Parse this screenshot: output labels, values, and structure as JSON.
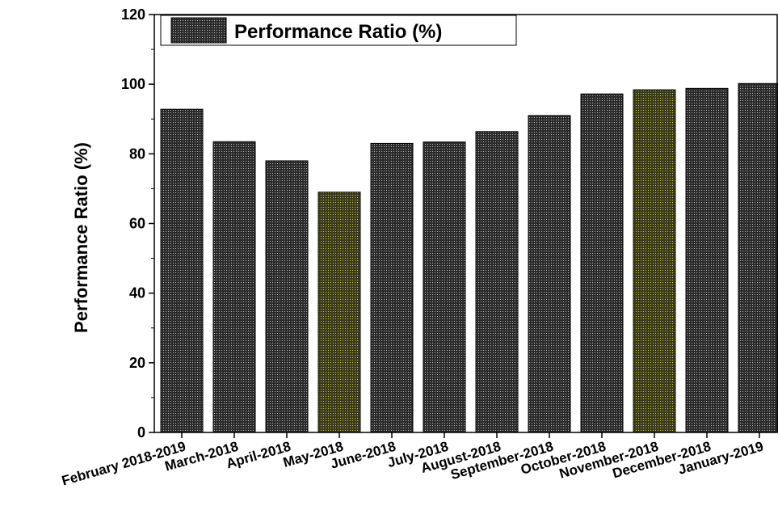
{
  "chart_data": {
    "type": "bar",
    "ylabel": "Performance Ratio (%)",
    "xlabel": "",
    "ylim": [
      0,
      120
    ],
    "yticks": [
      0,
      20,
      40,
      60,
      80,
      100,
      120
    ],
    "grid": false,
    "legend_position": "top-left",
    "categories": [
      "February 2018-2019",
      "March-2018",
      "April-2018",
      "May-2018",
      "June-2018",
      "July-2018",
      "August-2018",
      "September-2018",
      "October-2018",
      "November-2018",
      "December-2018",
      "January-2019"
    ],
    "series": [
      {
        "name": "Performance Ratio (%)",
        "values": [
          92.8,
          83.5,
          78.0,
          69.0,
          83.0,
          83.4,
          86.4,
          91.0,
          97.2,
          98.4,
          98.8,
          100.2
        ]
      }
    ],
    "bar_colors": [
      "#2a2a2a",
      "#2a2a2a",
      "#2a2a2a",
      "#3a3a1a",
      "#2a2a2a",
      "#2a2a2a",
      "#2a2a2a",
      "#2a2a2a",
      "#2a2a2a",
      "#3a3a1a",
      "#2a2a2a",
      "#2a2a2a"
    ],
    "dot_colors": [
      "#bdbdbd",
      "#bdbdbd",
      "#bdbdbd",
      "#c8c85a",
      "#bdbdbd",
      "#bdbdbd",
      "#bdbdbd",
      "#bdbdbd",
      "#bdbdbd",
      "#c8c85a",
      "#bdbdbd",
      "#bdbdbd"
    ]
  }
}
